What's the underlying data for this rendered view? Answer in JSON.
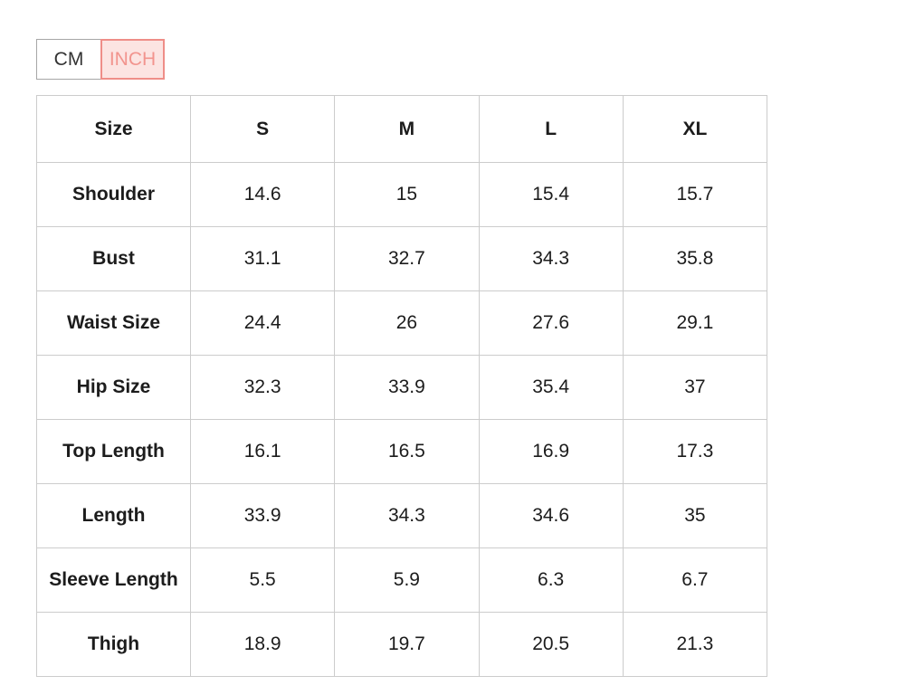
{
  "unit_toggle": {
    "cm_label": "CM",
    "inch_label": "INCH",
    "selected_unit": "INCH",
    "selected_bg": "#fce4e2",
    "selected_border": "#ef8e88",
    "selected_text": "#f2948e"
  },
  "size_chart": {
    "columns": [
      "Size",
      "S",
      "M",
      "L",
      "XL"
    ],
    "rows": [
      {
        "label": "Shoulder",
        "values": [
          "14.6",
          "15",
          "15.4",
          "15.7"
        ]
      },
      {
        "label": "Bust",
        "values": [
          "31.1",
          "32.7",
          "34.3",
          "35.8"
        ]
      },
      {
        "label": "Waist Size",
        "values": [
          "24.4",
          "26",
          "27.6",
          "29.1"
        ]
      },
      {
        "label": "Hip Size",
        "values": [
          "32.3",
          "33.9",
          "35.4",
          "37"
        ]
      },
      {
        "label": "Top Length",
        "values": [
          "16.1",
          "16.5",
          "16.9",
          "17.3"
        ]
      },
      {
        "label": "Length",
        "values": [
          "33.9",
          "34.3",
          "34.6",
          "35"
        ]
      },
      {
        "label": "Sleeve Length",
        "values": [
          "5.5",
          "5.9",
          "6.3",
          "6.7"
        ]
      },
      {
        "label": "Thigh",
        "values": [
          "18.9",
          "19.7",
          "20.5",
          "21.3"
        ]
      }
    ]
  }
}
